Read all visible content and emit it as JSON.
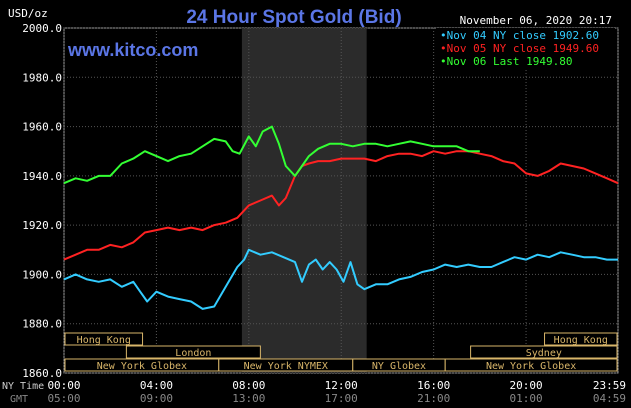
{
  "chart_data": {
    "type": "line",
    "title": "24 Hour Spot Gold (Bid)",
    "website": "www.kitco.com",
    "unit_label": "USD/oz",
    "timestamp": "November 06, 2020 20:17",
    "ylim": [
      1860,
      2000
    ],
    "y_ticks": [
      "2000.0",
      "1980.0",
      "1960.0",
      "1940.0",
      "1920.0",
      "1900.0",
      "1880.0",
      "1860.0"
    ],
    "x_ticks_ny": [
      "00:00",
      "04:00",
      "08:00",
      "12:00",
      "16:00",
      "20:00",
      "23:59"
    ],
    "x_ticks_gmt": [
      "05:00",
      "09:00",
      "13:00",
      "17:00",
      "21:00",
      "01:00",
      "04:59"
    ],
    "x_axis_label_ny": "NY Time",
    "x_axis_label_gmt": "GMT",
    "grid": true,
    "shaded_session_hours": [
      7.7,
      13.1
    ],
    "legend": [
      {
        "name": "Nov 04 NY close 1902.60",
        "color": "#33ccff"
      },
      {
        "name": "Nov 05 NY close 1949.60",
        "color": "#ff2222"
      },
      {
        "name": "Nov 06 Last 1949.80",
        "color": "#33ff33"
      }
    ],
    "series": [
      {
        "name": "Nov 04 NY close 1902.60",
        "color": "#33ccff",
        "x": [
          0,
          0.5,
          1,
          1.5,
          2,
          2.5,
          3,
          3.3,
          3.6,
          4,
          4.5,
          5,
          5.5,
          6,
          6.5,
          7,
          7.5,
          7.8,
          8,
          8.5,
          9,
          9.5,
          10,
          10.3,
          10.6,
          10.9,
          11.2,
          11.5,
          11.8,
          12.1,
          12.4,
          12.7,
          13,
          13.5,
          14,
          14.5,
          15,
          15.5,
          16,
          16.5,
          17,
          17.5,
          18,
          18.5,
          19,
          19.5,
          20,
          20.5,
          21,
          21.5,
          22,
          22.5,
          23,
          23.5,
          23.98
        ],
        "values": [
          1898,
          1900,
          1898,
          1897,
          1898,
          1895,
          1897,
          1893,
          1889,
          1893,
          1891,
          1890,
          1889,
          1886,
          1887,
          1895,
          1903,
          1906,
          1910,
          1908,
          1909,
          1907,
          1905,
          1897,
          1904,
          1906,
          1902,
          1905,
          1902,
          1897,
          1905,
          1896,
          1894,
          1896,
          1896,
          1898,
          1899,
          1901,
          1902,
          1904,
          1903,
          1904,
          1903,
          1903,
          1905,
          1907,
          1906,
          1908,
          1907,
          1909,
          1908,
          1907,
          1907,
          1906,
          1906
        ]
      },
      {
        "name": "Nov 05 NY close 1949.60",
        "color": "#ff2222",
        "x": [
          0,
          0.5,
          1,
          1.5,
          2,
          2.5,
          3,
          3.5,
          4,
          4.5,
          5,
          5.5,
          6,
          6.5,
          7,
          7.5,
          8,
          8.5,
          9,
          9.3,
          9.6,
          10,
          10.3,
          10.6,
          11,
          11.5,
          12,
          12.5,
          13,
          13.5,
          14,
          14.5,
          15,
          15.5,
          16,
          16.5,
          17,
          17.5,
          18,
          18.5,
          19,
          19.5,
          20,
          20.5,
          21,
          21.5,
          22,
          22.5,
          23,
          23.5,
          23.98
        ],
        "values": [
          1906,
          1908,
          1910,
          1910,
          1912,
          1911,
          1913,
          1917,
          1918,
          1919,
          1918,
          1919,
          1918,
          1920,
          1921,
          1923,
          1928,
          1930,
          1932,
          1928,
          1931,
          1940,
          1944,
          1945,
          1946,
          1946,
          1947,
          1947,
          1947,
          1946,
          1948,
          1949,
          1949,
          1948,
          1950,
          1949,
          1950,
          1950,
          1949,
          1948,
          1946,
          1945,
          1941,
          1940,
          1942,
          1945,
          1944,
          1943,
          1941,
          1939,
          1937
        ]
      },
      {
        "name": "Nov 06 Last 1949.80",
        "color": "#33ff33",
        "x": [
          0,
          0.5,
          1,
          1.5,
          2,
          2.5,
          3,
          3.5,
          4,
          4.5,
          5,
          5.5,
          6,
          6.5,
          7,
          7.3,
          7.6,
          8,
          8.3,
          8.6,
          9,
          9.3,
          9.6,
          10,
          10.3,
          10.6,
          11,
          11.5,
          12,
          12.5,
          13,
          13.5,
          14,
          14.5,
          15,
          15.5,
          16,
          16.5,
          17,
          17.5,
          18
        ],
        "values": [
          1937,
          1939,
          1938,
          1940,
          1940,
          1945,
          1947,
          1950,
          1948,
          1946,
          1948,
          1949,
          1952,
          1955,
          1954,
          1950,
          1949,
          1956,
          1952,
          1958,
          1960,
          1953,
          1944,
          1940,
          1944,
          1948,
          1951,
          1953,
          1953,
          1952,
          1953,
          1953,
          1952,
          1953,
          1954,
          1953,
          1952,
          1952,
          1952,
          1950,
          1950
        ]
      }
    ],
    "sessions": [
      {
        "label": "Hong Kong",
        "start": 0,
        "end": 3.4
      },
      {
        "label": "London",
        "start": 2.7,
        "end": 8.5
      },
      {
        "label": "New York Globex",
        "start": 0,
        "end": 6.7
      },
      {
        "label": "New York NYMEX",
        "start": 6.7,
        "end": 12.5
      },
      {
        "label": "NY Globex",
        "start": 12.5,
        "end": 16.5
      },
      {
        "label": "Hong Kong",
        "start": 20.8,
        "end": 23.98
      },
      {
        "label": "Sydney",
        "start": 17.6,
        "end": 23.98
      },
      {
        "label": "New York Globex",
        "start": 16.5,
        "end": 23.98
      }
    ]
  }
}
